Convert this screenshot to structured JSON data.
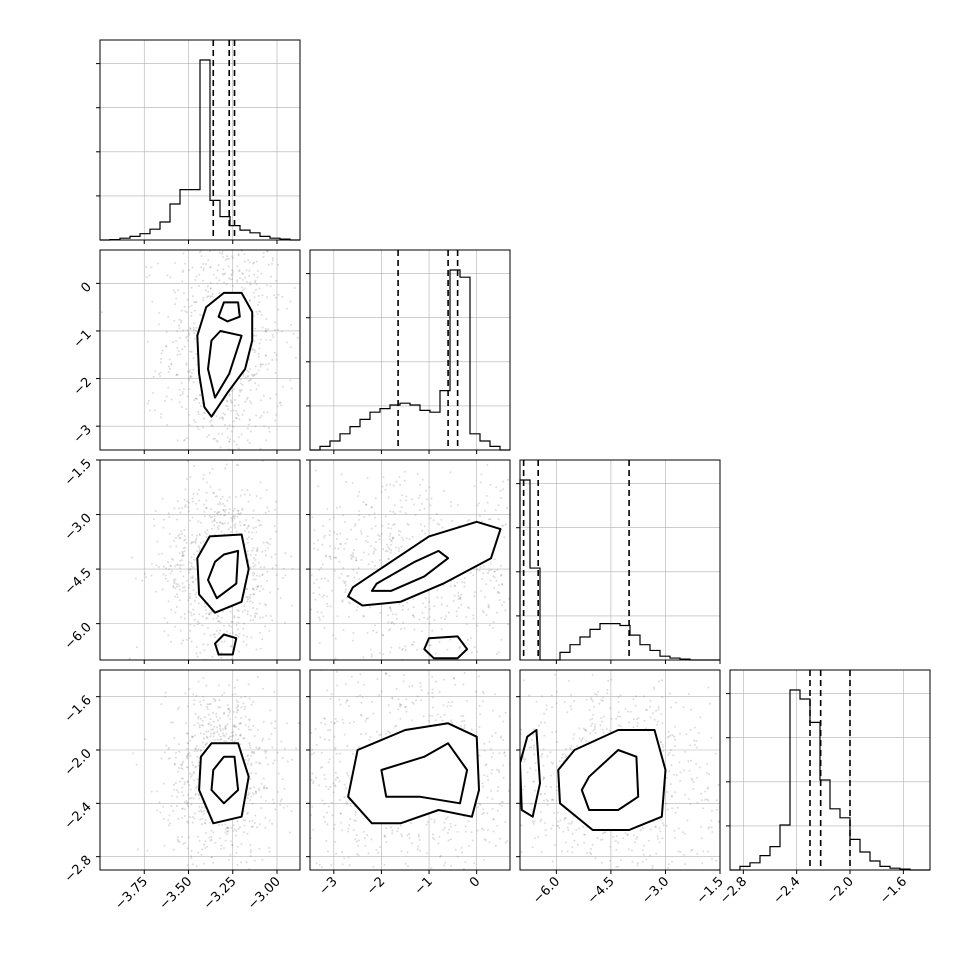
{
  "chart_data": {
    "type": "corner",
    "parameters": [
      {
        "name": "",
        "range": [
          -4.0,
          -2.87
        ],
        "ticks": [
          -3.75,
          -3.5,
          -3.25,
          -3.0
        ],
        "tick_labels": [
          "−3.75",
          "−3.50",
          "−3.25",
          "−3.00"
        ]
      },
      {
        "name": "",
        "range": [
          -3.5,
          0.7
        ],
        "ticks": [
          -3,
          -2,
          -1,
          0
        ],
        "tick_labels": [
          "−3",
          "−2",
          "−1",
          "0"
        ]
      },
      {
        "name": "",
        "range": [
          -7.0,
          -1.5
        ],
        "ticks": [
          -6.0,
          -4.5,
          -3.0,
          -1.5
        ],
        "tick_labels": [
          "−6.0",
          "−4.5",
          "−3.0",
          "−1.5"
        ]
      },
      {
        "name": "",
        "range": [
          -2.9,
          -1.4
        ],
        "ticks": [
          -2.8,
          -2.4,
          -2.0,
          -1.6
        ],
        "tick_labels": [
          "−2.8",
          "−2.4",
          "−2.0",
          "−1.6"
        ]
      }
    ],
    "marginals": [
      {
        "param": 0,
        "bin_edges_range": [
          -4.0,
          -2.87
        ],
        "bins": 20,
        "counts": [
          0.0,
          0.002,
          0.01,
          0.02,
          0.035,
          0.06,
          0.1,
          0.2,
          0.28,
          0.28,
          1.0,
          0.22,
          0.13,
          0.08,
          0.055,
          0.04,
          0.02,
          0.01,
          0.005,
          0.0
        ],
        "quantiles": [
          -3.36,
          -3.27,
          -3.24
        ]
      },
      {
        "param": 1,
        "bin_edges_range": [
          -3.5,
          0.7
        ],
        "bins": 20,
        "counts": [
          0.0,
          0.02,
          0.05,
          0.09,
          0.13,
          0.17,
          0.21,
          0.23,
          0.25,
          0.26,
          0.25,
          0.22,
          0.21,
          0.33,
          1.0,
          0.96,
          0.09,
          0.05,
          0.02,
          0.0
        ],
        "quantiles": [
          -1.65,
          -0.6,
          -0.4
        ]
      },
      {
        "param": 2,
        "bin_edges_range": [
          -7.0,
          -1.5
        ],
        "bins": 20,
        "counts": [
          0.94,
          0.48,
          0.0,
          0.0,
          0.04,
          0.08,
          0.12,
          0.16,
          0.19,
          0.19,
          0.18,
          0.13,
          0.08,
          0.05,
          0.02,
          0.01,
          0.005,
          0.0,
          0.0,
          0.0
        ],
        "quantiles": [
          -6.9,
          -6.5,
          -4.0
        ]
      },
      {
        "param": 3,
        "bin_edges_range": [
          -2.9,
          -1.4
        ],
        "bins": 20,
        "counts": [
          0.0,
          0.02,
          0.04,
          0.08,
          0.13,
          0.25,
          1.0,
          0.95,
          0.82,
          0.5,
          0.34,
          0.29,
          0.17,
          0.1,
          0.05,
          0.02,
          0.01,
          0.005,
          0.0,
          0.0
        ],
        "quantiles": [
          -2.3,
          -2.22,
          -2.0
        ]
      }
    ],
    "joint_contours": [
      {
        "x": 0,
        "y": 1,
        "levels": [
          [
            [
              -3.3,
              -0.2
            ],
            [
              -3.2,
              -0.2
            ],
            [
              -3.14,
              -0.6
            ],
            [
              -3.14,
              -1.2
            ],
            [
              -3.18,
              -1.8
            ],
            [
              -3.28,
              -2.3
            ],
            [
              -3.37,
              -2.8
            ],
            [
              -3.41,
              -2.6
            ],
            [
              -3.44,
              -1.9
            ],
            [
              -3.45,
              -1.1
            ],
            [
              -3.4,
              -0.5
            ],
            [
              -3.3,
              -0.2
            ]
          ],
          [
            [
              -3.3,
              -0.4
            ],
            [
              -3.22,
              -0.4
            ],
            [
              -3.21,
              -0.7
            ],
            [
              -3.28,
              -0.8
            ],
            [
              -3.33,
              -0.7
            ],
            [
              -3.3,
              -0.4
            ]
          ],
          [
            [
              -3.32,
              -1.0
            ],
            [
              -3.2,
              -1.1
            ],
            [
              -3.27,
              -1.9
            ],
            [
              -3.35,
              -2.4
            ],
            [
              -3.39,
              -1.8
            ],
            [
              -3.37,
              -1.2
            ],
            [
              -3.32,
              -1.0
            ]
          ]
        ]
      },
      {
        "x": 0,
        "y": 2,
        "levels": [
          [
            [
              -3.38,
              -3.6
            ],
            [
              -3.2,
              -3.55
            ],
            [
              -3.16,
              -4.5
            ],
            [
              -3.2,
              -5.4
            ],
            [
              -3.35,
              -5.7
            ],
            [
              -3.44,
              -5.2
            ],
            [
              -3.45,
              -4.2
            ],
            [
              -3.38,
              -3.6
            ]
          ],
          [
            [
              -3.3,
              -4.1
            ],
            [
              -3.22,
              -4.0
            ],
            [
              -3.23,
              -4.9
            ],
            [
              -3.34,
              -5.3
            ],
            [
              -3.39,
              -4.8
            ],
            [
              -3.35,
              -4.3
            ],
            [
              -3.3,
              -4.1
            ]
          ],
          [
            [
              -3.33,
              -6.85
            ],
            [
              -3.25,
              -6.85
            ],
            [
              -3.23,
              -6.4
            ],
            [
              -3.3,
              -6.3
            ],
            [
              -3.35,
              -6.55
            ],
            [
              -3.33,
              -6.85
            ]
          ]
        ]
      },
      {
        "x": 0,
        "y": 3,
        "levels": [
          [
            [
              -3.37,
              -1.95
            ],
            [
              -3.22,
              -1.95
            ],
            [
              -3.16,
              -2.2
            ],
            [
              -3.2,
              -2.5
            ],
            [
              -3.36,
              -2.55
            ],
            [
              -3.44,
              -2.3
            ],
            [
              -3.43,
              -2.05
            ],
            [
              -3.37,
              -1.95
            ]
          ],
          [
            [
              -3.3,
              -2.05
            ],
            [
              -3.24,
              -2.05
            ],
            [
              -3.22,
              -2.3
            ],
            [
              -3.3,
              -2.4
            ],
            [
              -3.37,
              -2.3
            ],
            [
              -3.36,
              -2.15
            ],
            [
              -3.3,
              -2.05
            ]
          ]
        ]
      },
      {
        "x": 1,
        "y": 2,
        "levels": [
          [
            [
              -2.6,
              -5.0
            ],
            [
              -1.8,
              -4.3
            ],
            [
              -1.0,
              -3.6
            ],
            [
              0.0,
              -3.2
            ],
            [
              0.5,
              -3.4
            ],
            [
              0.3,
              -4.2
            ],
            [
              -0.7,
              -4.9
            ],
            [
              -1.6,
              -5.4
            ],
            [
              -2.4,
              -5.5
            ],
            [
              -2.7,
              -5.25
            ],
            [
              -2.6,
              -5.0
            ]
          ],
          [
            [
              -2.1,
              -4.9
            ],
            [
              -1.3,
              -4.3
            ],
            [
              -0.8,
              -4.0
            ],
            [
              -0.6,
              -4.2
            ],
            [
              -1.1,
              -4.7
            ],
            [
              -1.8,
              -5.1
            ],
            [
              -2.2,
              -5.1
            ],
            [
              -2.1,
              -4.9
            ]
          ],
          [
            [
              -1.0,
              -6.4
            ],
            [
              -0.4,
              -6.35
            ],
            [
              -0.2,
              -6.7
            ],
            [
              -0.4,
              -6.95
            ],
            [
              -0.9,
              -6.95
            ],
            [
              -1.1,
              -6.7
            ],
            [
              -1.0,
              -6.4
            ]
          ]
        ]
      },
      {
        "x": 1,
        "y": 3,
        "levels": [
          [
            [
              -2.5,
              -2.0
            ],
            [
              -1.5,
              -1.85
            ],
            [
              -0.6,
              -1.8
            ],
            [
              0.0,
              -1.9
            ],
            [
              0.05,
              -2.3
            ],
            [
              -0.1,
              -2.5
            ],
            [
              -0.8,
              -2.45
            ],
            [
              -1.6,
              -2.55
            ],
            [
              -2.2,
              -2.55
            ],
            [
              -2.7,
              -2.35
            ],
            [
              -2.5,
              -2.0
            ]
          ],
          [
            [
              -2.0,
              -2.15
            ],
            [
              -1.1,
              -2.05
            ],
            [
              -0.6,
              -1.95
            ],
            [
              -0.2,
              -2.15
            ],
            [
              -0.35,
              -2.4
            ],
            [
              -1.2,
              -2.35
            ],
            [
              -1.9,
              -2.35
            ],
            [
              -2.0,
              -2.15
            ]
          ]
        ]
      },
      {
        "x": 2,
        "y": 3,
        "levels": [
          [
            [
              -5.5,
              -2.0
            ],
            [
              -4.3,
              -1.85
            ],
            [
              -3.3,
              -1.85
            ],
            [
              -3.0,
              -2.15
            ],
            [
              -3.1,
              -2.5
            ],
            [
              -4.0,
              -2.6
            ],
            [
              -5.0,
              -2.6
            ],
            [
              -5.9,
              -2.4
            ],
            [
              -5.95,
              -2.15
            ],
            [
              -5.5,
              -2.0
            ]
          ],
          [
            [
              -5.1,
              -2.2
            ],
            [
              -4.3,
              -2.0
            ],
            [
              -3.8,
              -2.05
            ],
            [
              -3.75,
              -2.35
            ],
            [
              -4.3,
              -2.45
            ],
            [
              -5.1,
              -2.45
            ],
            [
              -5.3,
              -2.3
            ],
            [
              -5.1,
              -2.2
            ]
          ],
          [
            [
              -6.8,
              -1.9
            ],
            [
              -6.55,
              -1.85
            ],
            [
              -6.45,
              -2.25
            ],
            [
              -6.65,
              -2.5
            ],
            [
              -6.95,
              -2.45
            ],
            [
              -7.0,
              -2.1
            ],
            [
              -6.8,
              -1.9
            ]
          ]
        ]
      }
    ],
    "grid": true,
    "colors": {
      "points": "#808080",
      "lines": "#000000",
      "grid": "#b0b0b0"
    }
  }
}
